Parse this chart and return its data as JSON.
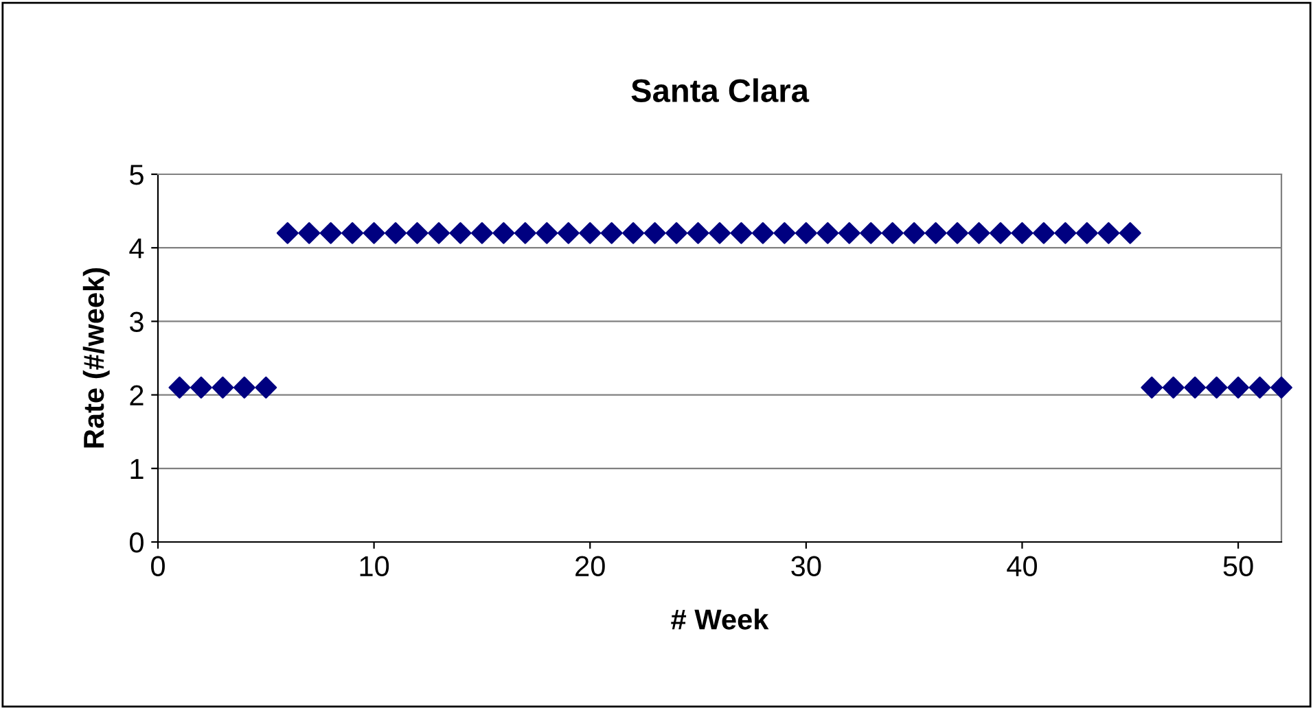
{
  "chart_data": {
    "type": "scatter",
    "title": "Santa Clara",
    "xlabel": "# Week",
    "ylabel": "Rate (#/week)",
    "x": [
      1,
      2,
      3,
      4,
      5,
      6,
      7,
      8,
      9,
      10,
      11,
      12,
      13,
      14,
      15,
      16,
      17,
      18,
      19,
      20,
      21,
      22,
      23,
      24,
      25,
      26,
      27,
      28,
      29,
      30,
      31,
      32,
      33,
      34,
      35,
      36,
      37,
      38,
      39,
      40,
      41,
      42,
      43,
      44,
      45,
      46,
      47,
      48,
      49,
      50,
      51,
      52
    ],
    "series": [
      {
        "color": "#000080",
        "values": [
          2.1,
          2.1,
          2.1,
          2.1,
          2.1,
          4.2,
          4.2,
          4.2,
          4.2,
          4.2,
          4.2,
          4.2,
          4.2,
          4.2,
          4.2,
          4.2,
          4.2,
          4.2,
          4.2,
          4.2,
          4.2,
          4.2,
          4.2,
          4.2,
          4.2,
          4.2,
          4.2,
          4.2,
          4.2,
          4.2,
          4.2,
          4.2,
          4.2,
          4.2,
          4.2,
          4.2,
          4.2,
          4.2,
          4.2,
          4.2,
          4.2,
          4.2,
          4.2,
          4.2,
          4.2,
          2.1,
          2.1,
          2.1,
          2.1,
          2.1,
          2.1,
          2.1
        ]
      }
    ],
    "xlim": [
      0,
      52
    ],
    "xticks": [
      0,
      10,
      20,
      30,
      40,
      50
    ],
    "ylim": [
      0,
      5
    ],
    "yticks": [
      0,
      1,
      2,
      3,
      4,
      5
    ],
    "grid": "y",
    "legend": false,
    "marker": "diamond"
  }
}
